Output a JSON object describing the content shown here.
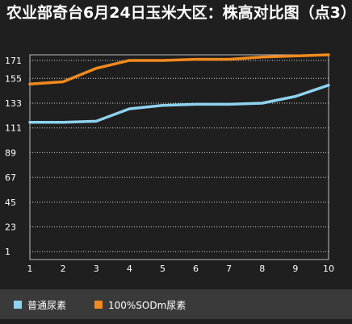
{
  "chart_data": {
    "type": "line",
    "title": "农业部奇台6月24日玉米大区：株高对比图（点3）",
    "x": [
      1,
      2,
      3,
      4,
      5,
      6,
      7,
      8,
      9,
      10
    ],
    "x_tick_labels": [
      "1",
      "2",
      "3",
      "4",
      "5",
      "6",
      "7",
      "8",
      "9",
      "10"
    ],
    "y_tick_labels": [
      "171",
      "155",
      "133",
      "111",
      "89",
      "67",
      "45",
      "23",
      "1"
    ],
    "y_ticks": [
      171,
      155,
      133,
      111,
      89,
      67,
      45,
      23,
      1
    ],
    "ylim": [
      -6,
      176
    ],
    "grid": true,
    "legend_position": "bottom",
    "series": [
      {
        "name": "普通尿素",
        "color": "#8ed3f0",
        "values": [
          116,
          116,
          117,
          128,
          131,
          132,
          132,
          133,
          139,
          149
        ]
      },
      {
        "name": "100%SODm尿素",
        "color": "#f28a1e",
        "values": [
          150,
          152,
          164,
          171,
          171,
          172,
          172,
          174,
          175,
          176
        ]
      }
    ]
  },
  "colors": {
    "background": "#1f1f1f",
    "legend_background": "#3a3a3a",
    "grid": "#d8d8d8",
    "text": "#ffffff"
  }
}
